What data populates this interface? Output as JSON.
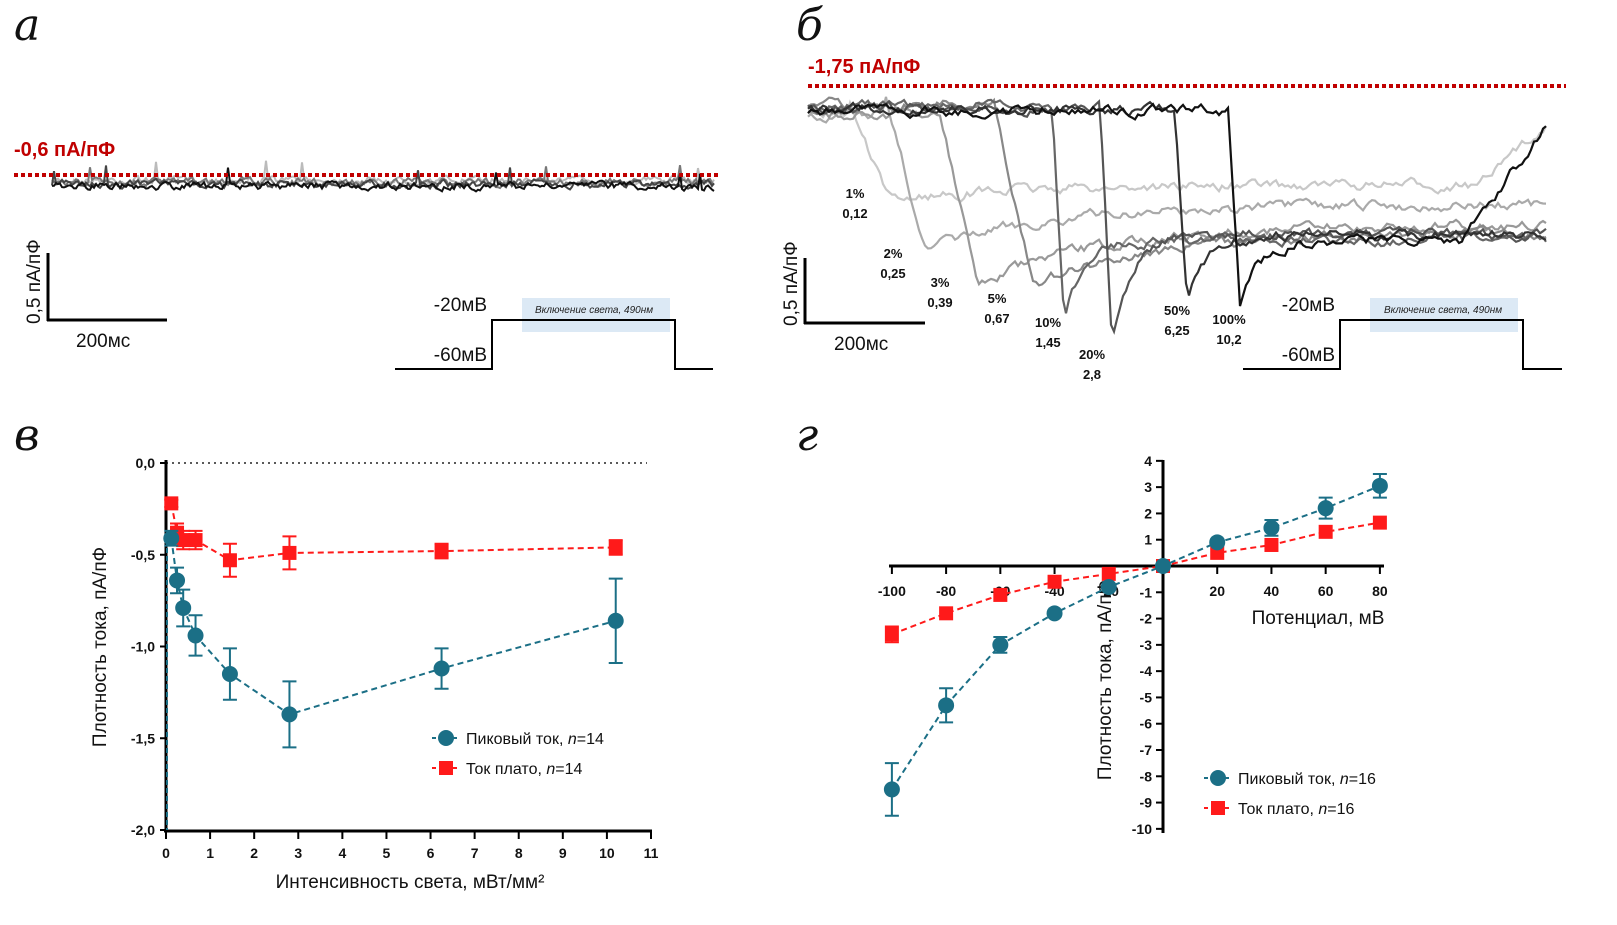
{
  "panels": {
    "a": {
      "letter": "а",
      "level_label": "-0,6 пА/пФ",
      "scale_y": "0,5 пА/пФ",
      "scale_x": "200мс",
      "protocol_high": "-20мВ",
      "protocol_low": "-60мВ",
      "light_label": "Включение света, 490нм"
    },
    "b": {
      "letter": "б",
      "level_label": "-1,75 пА/пФ",
      "scale_y": "0,5 пА/пФ",
      "scale_x": "200мс",
      "protocol_high": "-20мВ",
      "protocol_low": "-60мВ",
      "light_label": "Включение света, 490нм",
      "traces": [
        {
          "percent": "1%",
          "intensity": "0,12"
        },
        {
          "percent": "2%",
          "intensity": "0,25"
        },
        {
          "percent": "3%",
          "intensity": "0,39"
        },
        {
          "percent": "5%",
          "intensity": "0,67"
        },
        {
          "percent": "10%",
          "intensity": "1,45"
        },
        {
          "percent": "20%",
          "intensity": "2,8"
        },
        {
          "percent": "50%",
          "intensity": "6,25"
        },
        {
          "percent": "100%",
          "intensity": "10,2"
        }
      ]
    },
    "c": {
      "letter": "в"
    },
    "d": {
      "letter": "г"
    }
  },
  "colors": {
    "peak": "#1b6f86",
    "plateau": "#ff1a1a",
    "level_line": "#c00000",
    "light_box": "#dce9f5"
  },
  "chart_data": [
    {
      "type": "scatter",
      "xlabel": "Интенсивность света, мВт/мм²",
      "ylabel": "Плотность тока, пА/пФ",
      "xlim": [
        0,
        11
      ],
      "ylim": [
        -2.0,
        0.0
      ],
      "xticks": [
        "0",
        "1",
        "2",
        "3",
        "4",
        "5",
        "6",
        "7",
        "8",
        "9",
        "10",
        "11"
      ],
      "yticks": [
        "0,0",
        "-0,5",
        "-1,0",
        "-1,5",
        "-2,0"
      ],
      "reference_line": 0.0,
      "legend": "bottom-right",
      "x": [
        0.12,
        0.25,
        0.39,
        0.67,
        1.45,
        2.8,
        6.25,
        10.2
      ],
      "series": [
        {
          "name": "Пиковый ток, ",
          "n_label": "n",
          "n_value": "=14",
          "marker": "circle",
          "values": [
            -0.41,
            -0.64,
            -0.79,
            -0.94,
            -1.15,
            -1.37,
            -1.12,
            -0.86
          ],
          "errors": [
            0.04,
            0.07,
            0.1,
            0.11,
            0.14,
            0.18,
            0.11,
            0.23
          ]
        },
        {
          "name": "Ток плато, ",
          "n_label": "n",
          "n_value": "=14",
          "marker": "square",
          "values": [
            -0.22,
            -0.38,
            -0.42,
            -0.42,
            -0.53,
            -0.49,
            -0.48,
            -0.46
          ],
          "errors": [
            0.02,
            0.05,
            0.05,
            0.05,
            0.09,
            0.09,
            0.04,
            0.04
          ]
        }
      ]
    },
    {
      "type": "scatter",
      "xlabel": "Потенциал, мВ",
      "ylabel": "Плотность тока, пА/пФ",
      "xlim": [
        -100,
        80
      ],
      "ylim": [
        -10,
        4
      ],
      "xticks": [
        "-100",
        "-80",
        "-60",
        "-40",
        "-20",
        "20",
        "40",
        "60",
        "80"
      ],
      "yticks": [
        "4",
        "3",
        "2",
        "1",
        "-1",
        "-2",
        "-3",
        "-4",
        "-5",
        "-6",
        "-7",
        "-8",
        "-9",
        "-10"
      ],
      "legend": "bottom-right",
      "x": [
        -100,
        -80,
        -60,
        -40,
        -20,
        0,
        20,
        40,
        60,
        80
      ],
      "series": [
        {
          "name": "Пиковый ток, ",
          "n_label": "n",
          "n_value": "=16",
          "marker": "circle",
          "values": [
            -8.5,
            -5.3,
            -3.0,
            -1.8,
            -0.8,
            0,
            0.9,
            1.45,
            2.2,
            3.05
          ],
          "errors": [
            1.0,
            0.65,
            0.3,
            0,
            0,
            0,
            0,
            0.3,
            0.4,
            0.45
          ]
        },
        {
          "name": "Ток плато, ",
          "n_label": "n",
          "n_value": "=16",
          "marker": "square",
          "values": [
            -2.6,
            -1.8,
            -1.1,
            -0.6,
            -0.3,
            0,
            0.5,
            0.8,
            1.3,
            1.65
          ],
          "errors": [
            0.3,
            0,
            0,
            0,
            0,
            0,
            0,
            0,
            0,
            0
          ]
        }
      ]
    }
  ]
}
